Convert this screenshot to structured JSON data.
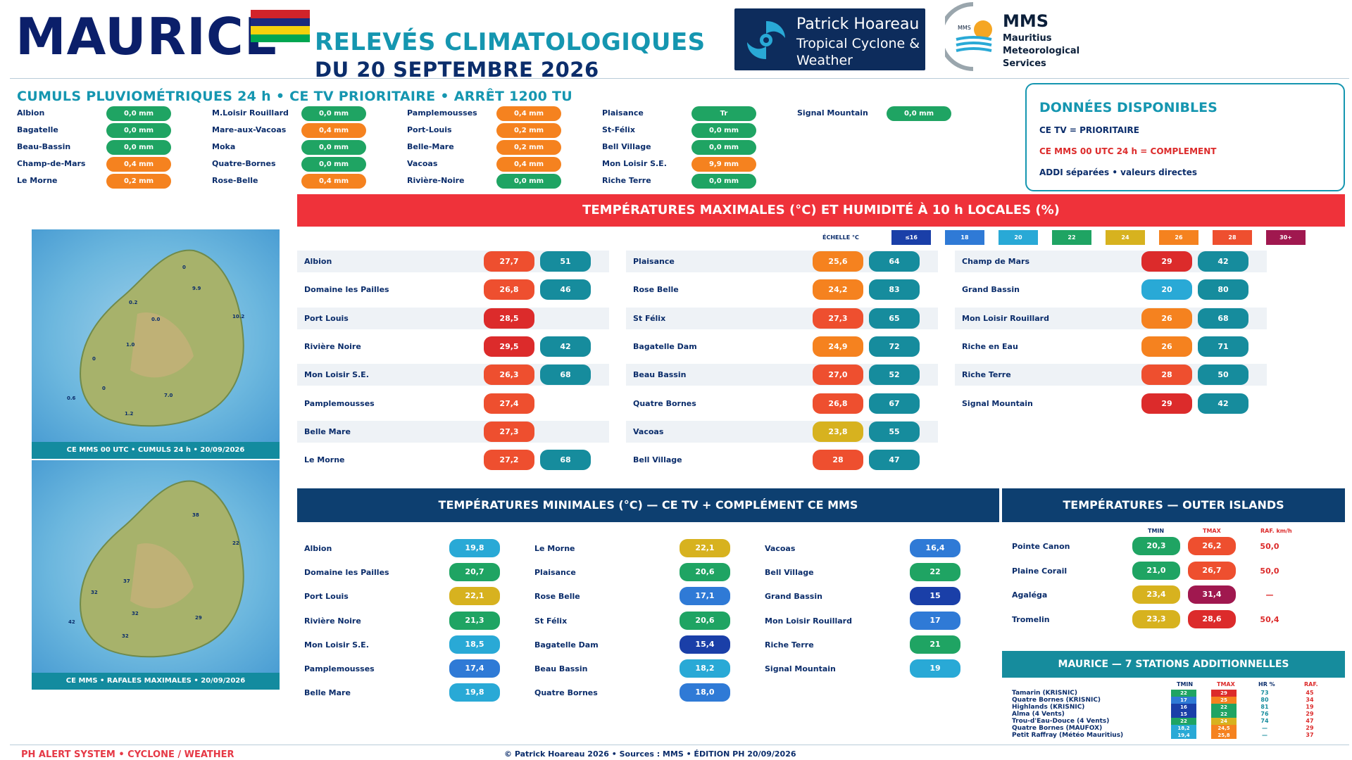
{
  "header": {
    "title": "MAURICE",
    "subtitle_1": "RELEVÉS CLIMATOLOGIQUES",
    "subtitle_2": "DU 20 SEPTEMBRE 2026",
    "ph_logo_1": "Patrick Hoareau",
    "ph_logo_2": "Tropical Cyclone &",
    "ph_logo_3": "Weather Monitoring",
    "mms_title": "MMS",
    "mms_1": "Mauritius",
    "mms_2": "Meteorological",
    "mms_3": "Services",
    "mms_logo_text": "MMS"
  },
  "colors": {
    "green": "#1fa463",
    "orange": "#f5821f",
    "red": "#dc2b2b",
    "teal": "#168c9d",
    "flag": [
      "#d2232a",
      "#1b2a7c",
      "#f5d10c",
      "#00a651"
    ]
  },
  "rain": {
    "heading": "CUMULS PLUVIOMÉTRIQUES 24 h • CE TV PRIORITAIRE • ARRÊT 1200 TU",
    "columns": [
      [
        {
          "n": "Albion",
          "v": "0,0 mm",
          "c": "green"
        },
        {
          "n": "Bagatelle",
          "v": "0,0 mm",
          "c": "green"
        },
        {
          "n": "Beau-Bassin",
          "v": "0,0 mm",
          "c": "green"
        },
        {
          "n": "Champ-de-Mars",
          "v": "0,4 mm",
          "c": "orange"
        },
        {
          "n": "Le Morne",
          "v": "0,2 mm",
          "c": "orange"
        }
      ],
      [
        {
          "n": "M.Loisir Rouillard",
          "v": "0,0 mm",
          "c": "green"
        },
        {
          "n": "Mare-aux-Vacoas",
          "v": "0,4 mm",
          "c": "orange"
        },
        {
          "n": "Moka",
          "v": "0,0 mm",
          "c": "green"
        },
        {
          "n": "Quatre-Bornes",
          "v": "0,0 mm",
          "c": "green"
        },
        {
          "n": "Rose-Belle",
          "v": "0,4 mm",
          "c": "orange"
        }
      ],
      [
        {
          "n": "Pamplemousses",
          "v": "0,4 mm",
          "c": "orange"
        },
        {
          "n": "Port-Louis",
          "v": "0,2 mm",
          "c": "orange"
        },
        {
          "n": "Belle-Mare",
          "v": "0,2 mm",
          "c": "orange"
        },
        {
          "n": "Vacoas",
          "v": "0,4 mm",
          "c": "orange"
        },
        {
          "n": "Rivière-Noire",
          "v": "0,0 mm",
          "c": "green"
        }
      ],
      [
        {
          "n": "Plaisance",
          "v": "Tr",
          "c": "green"
        },
        {
          "n": "St-Félix",
          "v": "0,0 mm",
          "c": "green"
        },
        {
          "n": "Bell Village",
          "v": "0,0 mm",
          "c": "green"
        },
        {
          "n": "Mon Loisir S.E.",
          "v": "9,9 mm",
          "c": "orange"
        },
        {
          "n": "Riche Terre",
          "v": "0,0 mm",
          "c": "green"
        }
      ],
      [
        {
          "n": "Signal Mountain",
          "v": "0,0 mm",
          "c": "green"
        }
      ]
    ]
  },
  "dispo": {
    "title": "DONNÉES DISPONIBLES",
    "l1": "CE TV = PRIORITAIRE",
    "l2": "CE MMS 00 UTC 24 h = COMPLEMENT",
    "l3": "ADDI séparées • valeurs directes"
  },
  "tmax": {
    "banner": "TEMPÉRATURES MAXIMALES (°C) ET HUMIDITÉ À 10 h LOCALES (%)",
    "scale_label": "ÉCHELLE °C",
    "scale": [
      {
        "t": "≤16",
        "c": "#1a3fa8"
      },
      {
        "t": "18",
        "c": "#2f7ad6"
      },
      {
        "t": "20",
        "c": "#29a9d6"
      },
      {
        "t": "22",
        "c": "#1fa463"
      },
      {
        "t": "24",
        "c": "#d7b21f"
      },
      {
        "t": "26",
        "c": "#f5821f"
      },
      {
        "t": "28",
        "c": "#ee4f2f"
      },
      {
        "t": "30+",
        "c": "#a0184f"
      }
    ],
    "columns": [
      [
        {
          "n": "Albion",
          "t": "27,7",
          "tc": "#ee4f2f",
          "h": "51"
        },
        {
          "n": "Domaine les Pailles",
          "t": "26,8",
          "tc": "#ee4f2f",
          "h": "46"
        },
        {
          "n": "Port Louis",
          "t": "28,5",
          "tc": "#dc2b2b",
          "h": ""
        },
        {
          "n": "Rivière Noire",
          "t": "29,5",
          "tc": "#dc2b2b",
          "h": "42"
        },
        {
          "n": "Mon Loisir S.E.",
          "t": "26,3",
          "tc": "#ee4f2f",
          "h": "68"
        },
        {
          "n": "Pamplemousses",
          "t": "27,4",
          "tc": "#ee4f2f",
          "h": ""
        },
        {
          "n": "Belle Mare",
          "t": "27,3",
          "tc": "#ee4f2f",
          "h": ""
        },
        {
          "n": "Le Morne",
          "t": "27,2",
          "tc": "#ee4f2f",
          "h": "68"
        }
      ],
      [
        {
          "n": "Plaisance",
          "t": "25,6",
          "tc": "#f5821f",
          "h": "64"
        },
        {
          "n": "Rose Belle",
          "t": "24,2",
          "tc": "#f5821f",
          "h": "83"
        },
        {
          "n": "St Félix",
          "t": "27,3",
          "tc": "#ee4f2f",
          "h": "65"
        },
        {
          "n": "Bagatelle Dam",
          "t": "24,9",
          "tc": "#f5821f",
          "h": "72"
        },
        {
          "n": "Beau Bassin",
          "t": "27,0",
          "tc": "#ee4f2f",
          "h": "52"
        },
        {
          "n": "Quatre Bornes",
          "t": "26,8",
          "tc": "#ee4f2f",
          "h": "67"
        },
        {
          "n": "Vacoas",
          "t": "23,8",
          "tc": "#d7b21f",
          "h": "55"
        },
        {
          "n": "Bell Village",
          "t": "28",
          "tc": "#ee4f2f",
          "h": "47"
        }
      ],
      [
        {
          "n": "Champ de Mars",
          "t": "29",
          "tc": "#dc2b2b",
          "h": "42"
        },
        {
          "n": "Grand Bassin",
          "t": "20",
          "tc": "#29a9d6",
          "h": "80"
        },
        {
          "n": "Mon Loisir Rouillard",
          "t": "26",
          "tc": "#f5821f",
          "h": "68"
        },
        {
          "n": "Riche en Eau",
          "t": "26",
          "tc": "#f5821f",
          "h": "71"
        },
        {
          "n": "Riche Terre",
          "t": "28",
          "tc": "#ee4f2f",
          "h": "50"
        },
        {
          "n": "Signal Mountain",
          "t": "29",
          "tc": "#dc2b2b",
          "h": "42"
        }
      ]
    ]
  },
  "maps": {
    "cap1": "CE MMS 00 UTC • CUMULS 24 h • 20/09/2026",
    "cap2": "CE MMS • RAFALES MAXIMALES • 20/09/2026",
    "labels1": [
      "0",
      "9.9",
      "10.2",
      "0.2",
      "0.0",
      "0",
      "1.0",
      "0.6",
      "7.0",
      "1.2",
      "0"
    ],
    "labels2": [
      "38",
      "22",
      "37",
      "32",
      "42",
      "32",
      "29",
      "32"
    ]
  },
  "tmin": {
    "banner": "TEMPÉRATURES MINIMALES (°C) — CE TV + COMPLÉMENT CE MMS",
    "columns": [
      [
        {
          "n": "Albion",
          "t": "19,8",
          "c": "#29a9d6"
        },
        {
          "n": "Domaine les Pailles",
          "t": "20,7",
          "c": "#1fa463"
        },
        {
          "n": "Port Louis",
          "t": "22,1",
          "c": "#d7b21f"
        },
        {
          "n": "Rivière Noire",
          "t": "21,3",
          "c": "#1fa463"
        },
        {
          "n": "Mon Loisir S.E.",
          "t": "18,5",
          "c": "#29a9d6"
        },
        {
          "n": "Pamplemousses",
          "t": "17,4",
          "c": "#2f7ad6"
        },
        {
          "n": "Belle Mare",
          "t": "19,8",
          "c": "#29a9d6"
        }
      ],
      [
        {
          "n": "Le Morne",
          "t": "22,1",
          "c": "#d7b21f"
        },
        {
          "n": "Plaisance",
          "t": "20,6",
          "c": "#1fa463"
        },
        {
          "n": "Rose Belle",
          "t": "17,1",
          "c": "#2f7ad6"
        },
        {
          "n": "St Félix",
          "t": "20,6",
          "c": "#1fa463"
        },
        {
          "n": "Bagatelle Dam",
          "t": "15,4",
          "c": "#1a3fa8"
        },
        {
          "n": "Beau Bassin",
          "t": "18,2",
          "c": "#29a9d6"
        },
        {
          "n": "Quatre Bornes",
          "t": "18,0",
          "c": "#2f7ad6"
        }
      ],
      [
        {
          "n": "Vacoas",
          "t": "16,4",
          "c": "#2f7ad6"
        },
        {
          "n": "Bell Village",
          "t": "22",
          "c": "#1fa463"
        },
        {
          "n": "Grand Bassin",
          "t": "15",
          "c": "#1a3fa8"
        },
        {
          "n": "Mon Loisir Rouillard",
          "t": "17",
          "c": "#2f7ad6"
        },
        {
          "n": "Riche Terre",
          "t": "21",
          "c": "#1fa463"
        },
        {
          "n": "Signal Mountain",
          "t": "19",
          "c": "#29a9d6"
        }
      ]
    ]
  },
  "outer": {
    "banner": "TEMPÉRATURES — OUTER ISLANDS",
    "h_tmin": "TMIN",
    "h_tmax": "TMAX",
    "h_raf": "RAF. km/h",
    "rows": [
      {
        "n": "Pointe Canon",
        "tmin": "20,3",
        "cmin": "#1fa463",
        "tmax": "26,2",
        "cmax": "#ee4f2f",
        "raf": "50,0"
      },
      {
        "n": "Plaine Corail",
        "tmin": "21,0",
        "cmin": "#1fa463",
        "tmax": "26,7",
        "cmax": "#ee4f2f",
        "raf": "50,0"
      },
      {
        "n": "Agaléga",
        "tmin": "23,4",
        "cmin": "#d7b21f",
        "tmax": "31,4",
        "cmax": "#a0184f",
        "raf": "—"
      },
      {
        "n": "Tromelin",
        "tmin": "23,3",
        "cmin": "#d7b21f",
        "tmax": "28,6",
        "cmax": "#dc2b2b",
        "raf": "50,4"
      }
    ]
  },
  "extra": {
    "banner": "MAURICE — 7 STATIONS ADDITIONNELLES",
    "h_tmin": "TMIN",
    "h_tmax": "TMAX",
    "h_hr": "HR %",
    "h_raf": "RAF.",
    "rows": [
      {
        "n": "Tamarin (KRISNIC)",
        "tmin": "22",
        "cmin": "#1fa463",
        "tmax": "29",
        "cmax": "#dc2b2b",
        "hr": "73",
        "raf": "45"
      },
      {
        "n": "Quatre Bornes (KRISNIC)",
        "tmin": "17",
        "cmin": "#2f7ad6",
        "tmax": "25",
        "cmax": "#f5821f",
        "hr": "80",
        "raf": "34"
      },
      {
        "n": "Highlands (KRISNIC)",
        "tmin": "16",
        "cmin": "#1a3fa8",
        "tmax": "22",
        "cmax": "#1fa463",
        "hr": "81",
        "raf": "19"
      },
      {
        "n": "Alma (4 Vents)",
        "tmin": "15",
        "cmin": "#1a3fa8",
        "tmax": "22",
        "cmax": "#1fa463",
        "hr": "76",
        "raf": "29"
      },
      {
        "n": "Trou-d'Eau-Douce (4 Vents)",
        "tmin": "22",
        "cmin": "#1fa463",
        "tmax": "24",
        "cmax": "#d7b21f",
        "hr": "74",
        "raf": "47"
      },
      {
        "n": "Quatre Bornes (MAUFOX)",
        "tmin": "18,2",
        "cmin": "#29a9d6",
        "tmax": "24,5",
        "cmax": "#f5821f",
        "hr": "—",
        "raf": "29"
      },
      {
        "n": "Petit Raffray (Météo Mauritius)",
        "tmin": "19,4",
        "cmin": "#29a9d6",
        "tmax": "25,8",
        "cmax": "#f5821f",
        "hr": "—",
        "raf": "37"
      }
    ]
  },
  "footer": {
    "left": "PH ALERT SYSTEM • CYCLONE / WEATHER",
    "center": "© Patrick Hoareau 2026 • Sources : MMS • ÉDITION PH 20/09/2026"
  }
}
